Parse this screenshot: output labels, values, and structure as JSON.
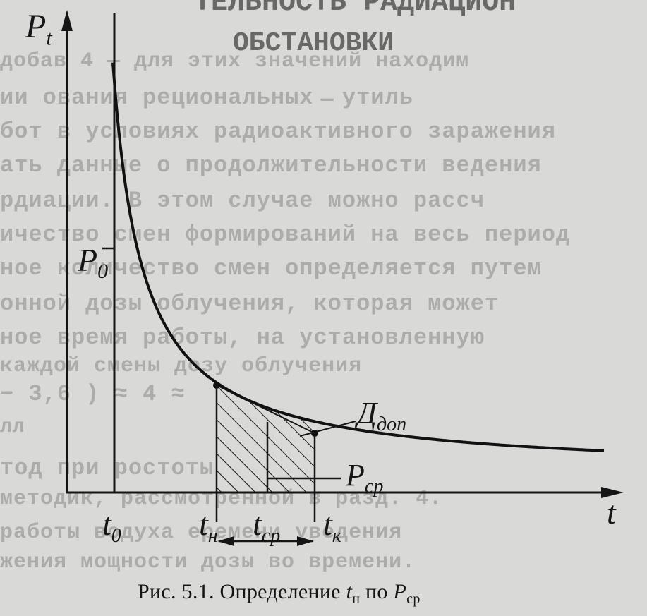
{
  "background_text": {
    "heading_line1": "ТЕЛЬНОСТЬ РАДИАЦИОН",
    "heading_line2": "ОБСТАНОВКИ",
    "lines": [
      "добав     4 — для этих значений находим",
      "ии      ования рециональных  ̶  утиль",
      "     бот в условиях радиоактивного заражения",
      "     ать данные о продолжительности ведения",
      "    рдиации. В этом случае можно рассч",
      "    ичество смен формирований на весь период",
      "    ное количество смен определяется путем",
      "      онной дозы облучения, которая может",
      "     ное время работы, на установленную",
      "    каждой смены дозу облучения",
      "                           − 3,6 ) ≈ 4 ≈",
      "      лл",
      "    тод при               ростоты",
      "      методик, рассмотренной в разд. 4.",
      "      работы   водуха  еремени уведения",
      "       жения мощности дозы во времени."
    ]
  },
  "figure": {
    "y_axis_label": "P",
    "y_axis_label_sub": "t",
    "x_axis_label": "t",
    "p0_label": "P",
    "p0_label_sub": "0",
    "t0_label": "t",
    "t0_label_sub": "0",
    "tn_label": "t",
    "tn_label_sub": "н",
    "tsr_label": "t",
    "tsr_label_sub": "ср",
    "tk_label": "t",
    "tk_label_sub": "к",
    "pcp_label": "P",
    "pcp_label_sub": "ср",
    "ddop_label": "Д",
    "ddop_label_sub": "доп"
  },
  "caption": {
    "prefix": "Рис. 5.1. Определение ",
    "var1": "t",
    "var1_sub": "н",
    "middle": " по ",
    "var2": "P",
    "var2_sub": "ср"
  },
  "colors": {
    "ink": "#161616",
    "paper": "#d9d9d7",
    "background_text": "#9c9c9a"
  }
}
